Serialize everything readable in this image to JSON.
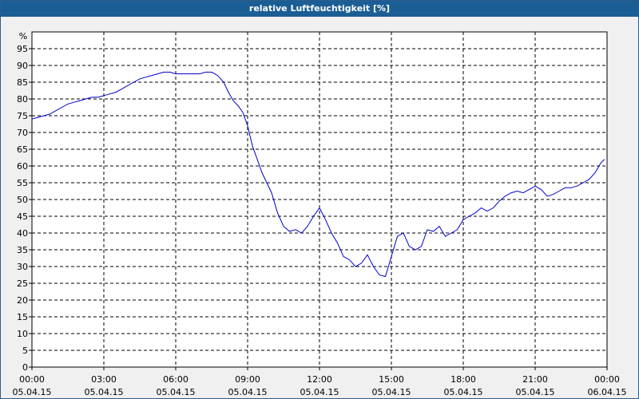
{
  "window": {
    "title": "relative Luftfeuchtigkeit [%]"
  },
  "chart_data": {
    "type": "line",
    "title": "relative Luftfeuchtigkeit [%]",
    "ylabel": "%",
    "xlabel": "",
    "ylim": [
      0,
      100
    ],
    "yticks": [
      0,
      5,
      10,
      15,
      20,
      25,
      30,
      35,
      40,
      45,
      50,
      55,
      60,
      65,
      70,
      75,
      80,
      85,
      90,
      95
    ],
    "xlim": [
      0,
      24
    ],
    "xticks": [
      {
        "x": 0,
        "time": "00:00",
        "date": "05.04.15"
      },
      {
        "x": 3,
        "time": "03:00",
        "date": "05.04.15"
      },
      {
        "x": 6,
        "time": "06:00",
        "date": "05.04.15"
      },
      {
        "x": 9,
        "time": "09:00",
        "date": "05.04.15"
      },
      {
        "x": 12,
        "time": "12:00",
        "date": "05.04.15"
      },
      {
        "x": 15,
        "time": "15:00",
        "date": "05.04.15"
      },
      {
        "x": 18,
        "time": "18:00",
        "date": "05.04.15"
      },
      {
        "x": 21,
        "time": "21:00",
        "date": "05.04.15"
      },
      {
        "x": 24,
        "time": "00:00",
        "date": "06.04.15"
      }
    ],
    "grid": true,
    "series": [
      {
        "color": "#0000cc",
        "x": [
          0,
          0.25,
          0.5,
          0.75,
          1.0,
          1.25,
          1.5,
          1.75,
          2.0,
          2.25,
          2.5,
          2.75,
          3.0,
          3.25,
          3.5,
          3.75,
          4.0,
          4.25,
          4.5,
          4.75,
          5.0,
          5.25,
          5.5,
          5.75,
          6.0,
          6.25,
          6.5,
          6.75,
          7.0,
          7.25,
          7.5,
          7.75,
          8.0,
          8.2,
          8.4,
          8.6,
          8.8,
          9.0,
          9.2,
          9.4,
          9.6,
          9.8,
          10.0,
          10.25,
          10.5,
          10.75,
          11.0,
          11.25,
          11.5,
          11.75,
          12.0,
          12.25,
          12.5,
          12.75,
          13.0,
          13.25,
          13.5,
          13.75,
          14.0,
          14.25,
          14.5,
          14.75,
          15.0,
          15.25,
          15.5,
          15.75,
          16.0,
          16.25,
          16.5,
          16.75,
          17.0,
          17.25,
          17.5,
          17.75,
          18.0,
          18.25,
          18.5,
          18.75,
          19.0,
          19.25,
          19.5,
          19.75,
          20.0,
          20.25,
          20.5,
          20.75,
          21.0,
          21.25,
          21.5,
          21.75,
          22.0,
          22.25,
          22.5,
          22.75,
          23.0,
          23.25,
          23.5,
          23.75,
          23.9
        ],
        "y": [
          74,
          74.5,
          75,
          75.5,
          76.5,
          77.5,
          78.5,
          79,
          79.5,
          80,
          80.5,
          80.5,
          81,
          81.5,
          82,
          83,
          84,
          85,
          86,
          86.5,
          87,
          87.5,
          88,
          88,
          87.5,
          87.5,
          87.5,
          87.5,
          87.5,
          88,
          88,
          87,
          85,
          82,
          79.5,
          78,
          76,
          72,
          66,
          62,
          58,
          55,
          52,
          46,
          42,
          40.5,
          41,
          40,
          42,
          45,
          47.5,
          44,
          40,
          37,
          33,
          32,
          30,
          31,
          33.5,
          30,
          27.5,
          27,
          33,
          39,
          40,
          36,
          35,
          36,
          41,
          40.5,
          42,
          39,
          40,
          41,
          44,
          45,
          46,
          47.5,
          46.5,
          47.5,
          49.5,
          51,
          52,
          52.5,
          52,
          53,
          54,
          53,
          51,
          51.5,
          52.5,
          53.5,
          53.5,
          54,
          55,
          56,
          58,
          61,
          62
        ]
      }
    ]
  }
}
